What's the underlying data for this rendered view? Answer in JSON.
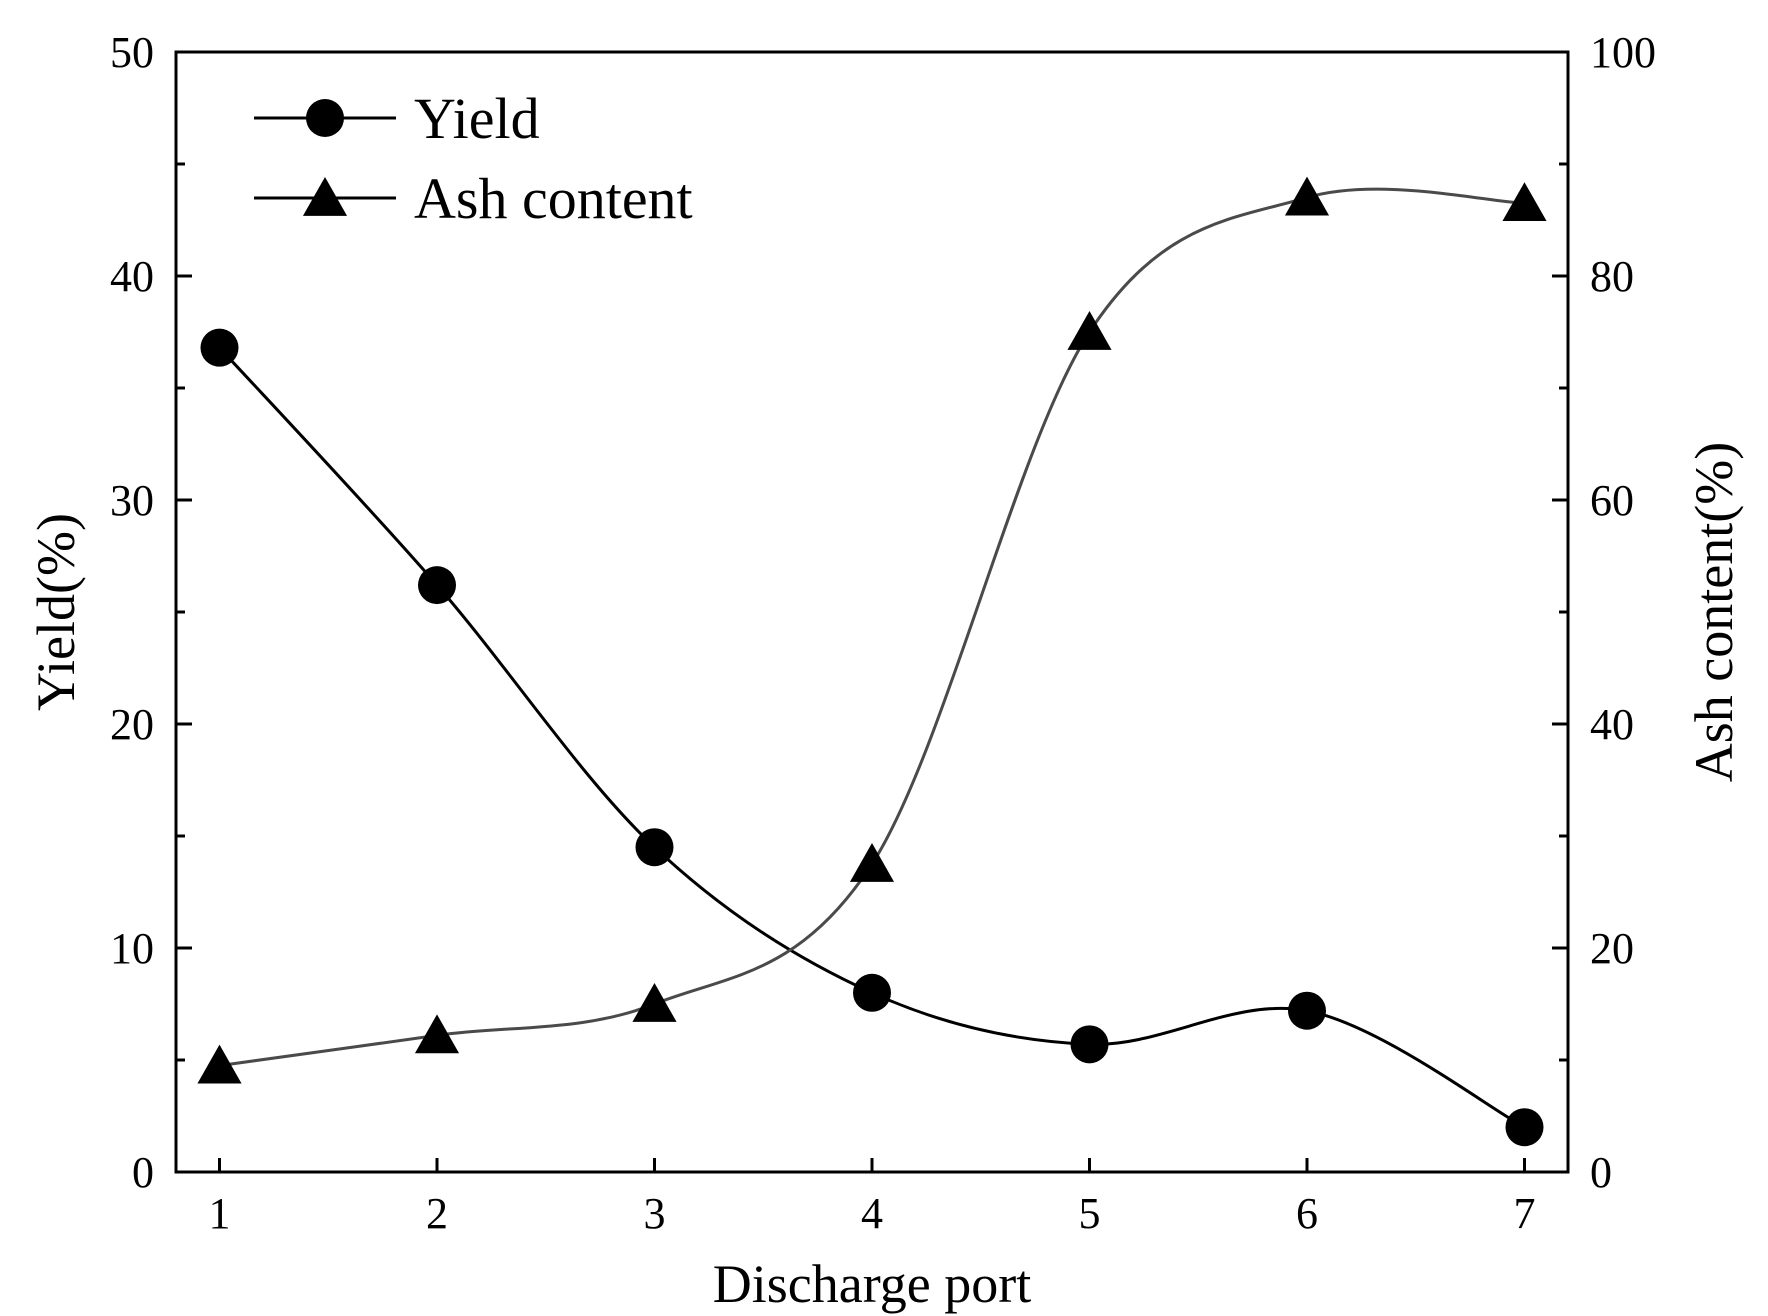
{
  "chart_data": {
    "type": "line",
    "title": "",
    "xlabel": "Discharge port",
    "ylabel_left": "Yield(%)",
    "ylabel_right": "Ash content(%)",
    "x": [
      1,
      2,
      3,
      4,
      5,
      6,
      7
    ],
    "x_ticks": [
      1,
      2,
      3,
      4,
      5,
      6,
      7
    ],
    "xlim": [
      0.8,
      7.2
    ],
    "ylim_left": [
      0,
      50
    ],
    "ylim_right": [
      0,
      100
    ],
    "y_ticks_left": [
      0,
      10,
      20,
      30,
      40,
      50
    ],
    "y_ticks_right": [
      0,
      20,
      40,
      60,
      80,
      100
    ],
    "grid": false,
    "legend_position": "top-left",
    "series": [
      {
        "name": "Yield",
        "axis": "left",
        "marker": "circle",
        "color": "#000000",
        "values": [
          36.8,
          26.2,
          14.5,
          8.0,
          5.7,
          7.2,
          2.0
        ]
      },
      {
        "name": "Ash content",
        "axis": "right",
        "marker": "triangle",
        "color": "#4a4a4a",
        "values": [
          9.5,
          12.2,
          15.0,
          27.5,
          75.0,
          87.0,
          86.5
        ]
      }
    ]
  }
}
